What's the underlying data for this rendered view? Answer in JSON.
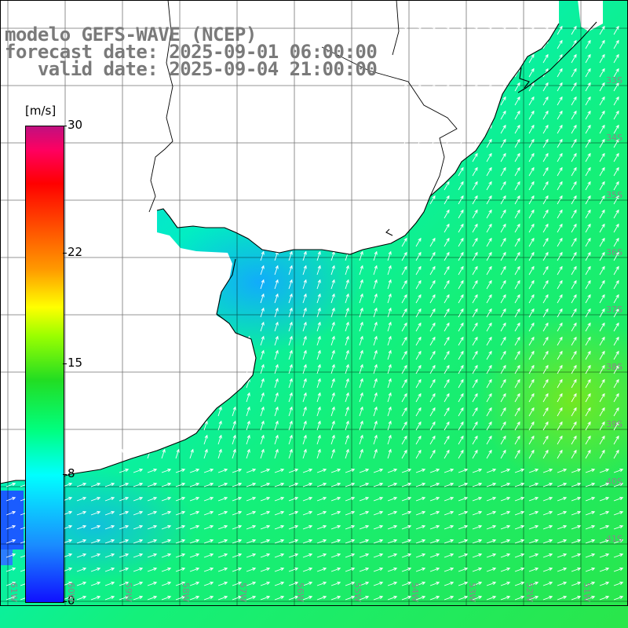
{
  "titles": {
    "model": "modelo GEFS-WAVE (NCEP)",
    "forecast": "forecast date: 2025-09-01 06:00:00",
    "valid": "   valid date: 2025-09-04 21:00:00"
  },
  "colorbar": {
    "units": "[m/s]",
    "ticks": [
      {
        "label": "30",
        "value": 30
      },
      {
        "label": "22",
        "value": 22
      },
      {
        "label": "15",
        "value": 15
      },
      {
        "label": "8",
        "value": 8
      },
      {
        "label": "0",
        "value": 0
      }
    ],
    "min": 0,
    "max": 30
  },
  "lon_labels": [
    "61W",
    "60W",
    "59W",
    "58W",
    "57W",
    "56W",
    "55W",
    "54W",
    "53W",
    "52W",
    "51W"
  ],
  "lat_labels": [
    "33S",
    "34S",
    "35S",
    "36S",
    "37S",
    "38S",
    "39S",
    "40S",
    "41S"
  ],
  "colors": {
    "land": "#ffffff",
    "coast": "#000000",
    "grid": "#000000",
    "vector": "#ffffff"
  }
}
